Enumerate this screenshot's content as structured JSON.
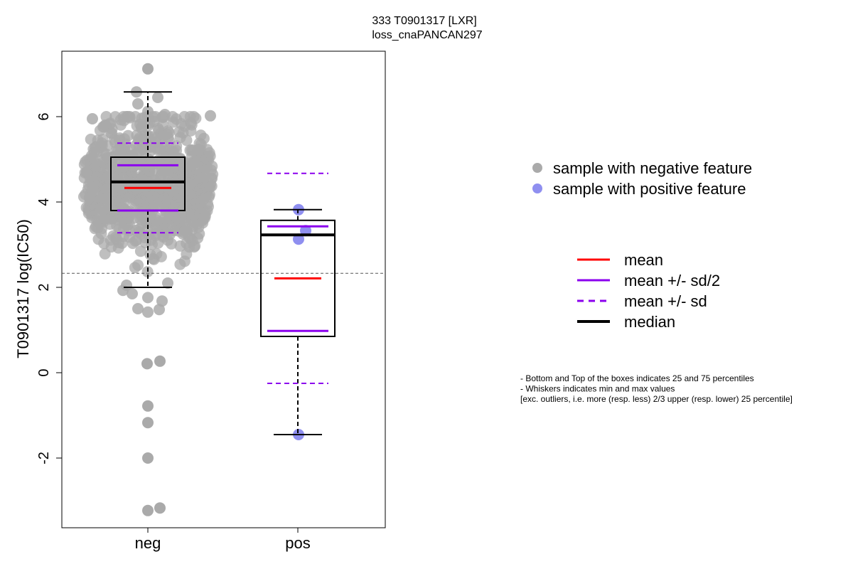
{
  "chart_data": {
    "type": "box",
    "title": "333 T0901317 [LXR]",
    "subtitle": "loss_cnaPANCAN297",
    "ylabel": "T0901317 log(IC50)",
    "xlabel": "",
    "ylim": [
      -3.6,
      7.5
    ],
    "yticks": [
      -2,
      0,
      2,
      4,
      6
    ],
    "categories": [
      "neg",
      "pos"
    ],
    "reference_line_y": 2.33,
    "groups": [
      {
        "name": "neg",
        "color": "#aaaaaa",
        "min": 2.0,
        "q1": 3.8,
        "median": 4.47,
        "q3": 5.05,
        "max": 6.58,
        "mean": 4.33,
        "mean_minus_half_sd": 3.8,
        "mean_plus_half_sd": 4.86,
        "mean_minus_sd": 3.28,
        "mean_plus_sd": 5.38,
        "outliers": [
          7.12,
          0.27,
          0.21,
          -0.78,
          -1.17,
          -2.0,
          -3.17,
          -3.23
        ]
      },
      {
        "name": "pos",
        "color": "#8f8ff0",
        "min": -1.45,
        "q1": 0.85,
        "median": 3.23,
        "q3": 3.57,
        "max": 3.82,
        "mean": 2.21,
        "mean_minus_half_sd": 0.98,
        "mean_plus_half_sd": 3.43,
        "mean_minus_sd": -0.25,
        "mean_plus_sd": 4.67,
        "points": [
          3.82,
          3.33,
          3.13,
          -1.45
        ]
      }
    ],
    "legend_points": [
      {
        "label": "sample with negative feature",
        "color": "#aaaaaa"
      },
      {
        "label": "sample with positive feature",
        "color": "#8f8ff0"
      }
    ],
    "legend_lines": [
      {
        "label": "mean",
        "color": "#ff0000",
        "style": "solid"
      },
      {
        "label": "mean +/- sd/2",
        "color": "#8b00ee",
        "style": "solid"
      },
      {
        "label": "mean +/- sd",
        "color": "#8b00ee",
        "style": "dashed"
      },
      {
        "label": "median",
        "color": "#000000",
        "style": "solid-thick"
      }
    ],
    "notes": [
      "- Bottom and Top of the boxes indicates 25 and 75 percentiles",
      "- Whiskers indicates min and max values",
      "[exc. outliers, i.e. more (resp. less) 2/3 upper (resp. lower) 25 percentile]"
    ]
  }
}
